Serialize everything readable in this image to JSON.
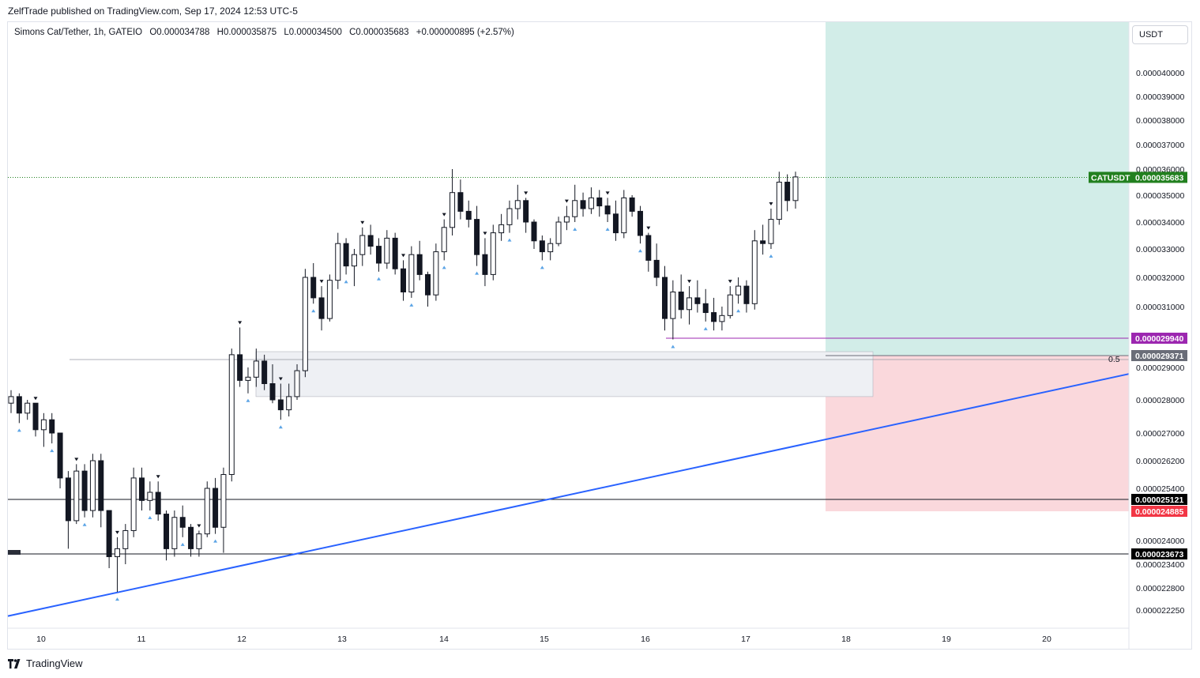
{
  "publisher": "ZelfTrade published on TradingView.com, Sep 17, 2024 12:53 UTC-5",
  "legend": {
    "symbol": "Simons Cat/Tether, 1h, GATEIO",
    "open": "O0.000034788",
    "high": "H0.000035875",
    "low": "L0.000034500",
    "close": "C0.000035683",
    "change": "+0.000000895 (+2.57%)"
  },
  "currency": "USDT",
  "footer_brand": "TradingView",
  "fib_label": "0.5",
  "colors": {
    "up": "#ffffff",
    "down": "#131722",
    "trendline": "#2962ff",
    "target_zone": "#d2ede8",
    "stop_zone": "#fad8dc",
    "current_tag": "#22801f",
    "purple_tag": "#9c27b0",
    "grey_tag": "#6a6d78",
    "black_tag": "#000000",
    "red_tag": "#f23645",
    "arrow_marker": "#5ba4e6"
  },
  "chart_data": {
    "type": "candlestick",
    "symbol_tag": "CATUSDT",
    "price_axis_labels": [
      "0.000040000",
      "0.000039000",
      "0.000038000",
      "0.000037000",
      "0.000036000",
      "0.000035000",
      "0.000034000",
      "0.000033000",
      "0.000032000",
      "0.000031000",
      "0.000029000",
      "0.000028000",
      "0.000027000",
      "0.000026200",
      "0.000025400",
      "0.000024000",
      "0.000023400",
      "0.000022800",
      "0.000022250"
    ],
    "time_axis_labels": [
      "10",
      "11",
      "12",
      "13",
      "14",
      "15",
      "16",
      "17",
      "18",
      "19",
      "20"
    ],
    "current_price": 3.5683e-05,
    "levels": [
      {
        "label": "0.000029940",
        "value": 2.994e-05,
        "tag": "purple"
      },
      {
        "label": "0.000029371",
        "value": 2.9371e-05,
        "tag": "grey"
      },
      {
        "label": "0.000025121",
        "value": 2.5121e-05,
        "tag": "black"
      },
      {
        "label": "0.000024885",
        "value": 2.4885e-05,
        "tag": "red"
      },
      {
        "label": "0.000023673",
        "value": 2.3673e-05,
        "tag": "black"
      }
    ],
    "demand_zone": [
      2.81e-05,
      2.95e-05
    ],
    "position": {
      "entry": 2.9371e-05,
      "target_top": 4.1e-05,
      "stop": 2.4885e-05
    },
    "trendline": {
      "from_price": 2.21e-05,
      "to_price": 2.88e-05
    },
    "candles": [
      [
        27.9,
        28.3,
        27.6,
        28.1
      ],
      [
        28.1,
        28.2,
        27.3,
        27.6
      ],
      [
        27.6,
        28.0,
        27.4,
        27.9
      ],
      [
        27.9,
        27.9,
        26.9,
        27.1
      ],
      [
        27.1,
        27.6,
        26.6,
        27.4
      ],
      [
        27.4,
        27.6,
        26.7,
        27.0
      ],
      [
        27.0,
        27.0,
        25.4,
        25.7
      ],
      [
        25.7,
        25.9,
        23.8,
        24.6
      ],
      [
        24.6,
        26.1,
        24.5,
        25.9
      ],
      [
        25.9,
        26.1,
        24.7,
        24.9
      ],
      [
        24.9,
        26.4,
        24.7,
        26.2
      ],
      [
        26.2,
        26.4,
        24.4,
        24.9
      ],
      [
        24.9,
        24.9,
        23.3,
        23.6
      ],
      [
        23.6,
        24.1,
        22.7,
        23.8
      ],
      [
        23.8,
        24.5,
        23.4,
        24.3
      ],
      [
        24.3,
        26.0,
        24.1,
        25.7
      ],
      [
        25.7,
        26.0,
        24.9,
        25.1
      ],
      [
        25.1,
        25.6,
        24.9,
        25.3
      ],
      [
        25.3,
        25.6,
        24.6,
        24.8
      ],
      [
        24.8,
        24.9,
        23.5,
        23.8
      ],
      [
        23.8,
        24.9,
        23.6,
        24.7
      ],
      [
        24.7,
        25.0,
        24.1,
        24.4
      ],
      [
        24.4,
        24.5,
        23.6,
        23.8
      ],
      [
        23.8,
        24.3,
        23.6,
        24.2
      ],
      [
        24.2,
        25.6,
        24.1,
        25.4
      ],
      [
        25.4,
        25.7,
        24.2,
        24.4
      ],
      [
        24.4,
        26.0,
        23.7,
        25.8
      ],
      [
        25.8,
        29.6,
        25.6,
        29.4
      ],
      [
        29.4,
        30.3,
        28.4,
        28.6
      ],
      [
        28.6,
        29.0,
        28.2,
        28.7
      ],
      [
        28.7,
        29.6,
        28.4,
        29.2
      ],
      [
        29.2,
        29.4,
        28.3,
        28.5
      ],
      [
        28.5,
        29.1,
        27.9,
        28.0
      ],
      [
        28.0,
        28.5,
        27.4,
        27.7
      ],
      [
        27.7,
        28.5,
        27.5,
        28.1
      ],
      [
        28.1,
        29.1,
        28.0,
        28.9
      ],
      [
        28.9,
        32.3,
        28.7,
        32.0
      ],
      [
        32.0,
        32.5,
        31.1,
        31.3
      ],
      [
        31.3,
        31.7,
        30.2,
        30.6
      ],
      [
        30.6,
        32.1,
        30.5,
        31.9
      ],
      [
        31.9,
        33.6,
        31.6,
        33.2
      ],
      [
        33.2,
        33.4,
        32.1,
        32.4
      ],
      [
        32.4,
        33.0,
        31.7,
        32.8
      ],
      [
        32.8,
        33.8,
        32.4,
        33.5
      ],
      [
        33.5,
        33.9,
        32.8,
        33.1
      ],
      [
        33.1,
        33.4,
        32.2,
        32.5
      ],
      [
        32.5,
        33.7,
        32.3,
        33.4
      ],
      [
        33.4,
        33.6,
        32.1,
        32.3
      ],
      [
        32.3,
        32.6,
        31.2,
        31.5
      ],
      [
        31.5,
        33.1,
        31.3,
        32.8
      ],
      [
        32.8,
        33.3,
        31.9,
        32.1
      ],
      [
        32.1,
        32.2,
        31.0,
        31.4
      ],
      [
        31.4,
        33.2,
        31.2,
        32.9
      ],
      [
        32.9,
        34.1,
        32.6,
        33.8
      ],
      [
        33.8,
        36.0,
        33.5,
        35.1
      ],
      [
        35.1,
        35.6,
        34.1,
        34.4
      ],
      [
        34.4,
        34.8,
        33.8,
        34.1
      ],
      [
        34.1,
        34.6,
        32.4,
        32.8
      ],
      [
        32.8,
        33.4,
        31.7,
        32.1
      ],
      [
        32.1,
        33.9,
        31.9,
        33.6
      ],
      [
        33.6,
        34.3,
        33.3,
        33.9
      ],
      [
        33.9,
        34.8,
        33.6,
        34.5
      ],
      [
        34.5,
        35.4,
        34.1,
        34.8
      ],
      [
        34.8,
        34.9,
        33.6,
        34.0
      ],
      [
        34.0,
        34.1,
        33.0,
        33.3
      ],
      [
        33.3,
        33.5,
        32.6,
        32.9
      ],
      [
        32.9,
        33.4,
        32.6,
        33.2
      ],
      [
        33.2,
        34.2,
        33.1,
        34.0
      ],
      [
        34.0,
        34.6,
        33.7,
        34.2
      ],
      [
        34.2,
        35.4,
        34.0,
        34.8
      ],
      [
        34.8,
        35.1,
        34.2,
        34.5
      ],
      [
        34.5,
        35.3,
        34.3,
        34.9
      ],
      [
        34.9,
        35.2,
        34.2,
        34.6
      ],
      [
        34.6,
        34.9,
        34.0,
        34.3
      ],
      [
        34.3,
        34.8,
        33.3,
        33.6
      ],
      [
        33.6,
        35.2,
        33.4,
        34.9
      ],
      [
        34.9,
        35.0,
        34.2,
        34.4
      ],
      [
        34.4,
        34.6,
        33.2,
        33.5
      ],
      [
        33.5,
        33.6,
        32.2,
        32.6
      ],
      [
        32.6,
        33.2,
        31.7,
        32.0
      ],
      [
        32.0,
        32.4,
        30.2,
        30.6
      ],
      [
        30.6,
        31.9,
        29.9,
        31.5
      ],
      [
        31.5,
        32.1,
        30.6,
        30.9
      ],
      [
        30.9,
        31.7,
        30.4,
        31.3
      ],
      [
        31.3,
        31.9,
        30.8,
        31.1
      ],
      [
        31.1,
        31.6,
        30.5,
        30.8
      ],
      [
        30.8,
        31.3,
        30.2,
        30.5
      ],
      [
        30.5,
        31.0,
        30.2,
        30.7
      ],
      [
        30.7,
        31.7,
        30.6,
        31.4
      ],
      [
        31.4,
        32.0,
        31.1,
        31.7
      ],
      [
        31.7,
        31.9,
        30.8,
        31.1
      ],
      [
        31.1,
        33.7,
        30.9,
        33.3
      ],
      [
        33.3,
        33.9,
        32.8,
        33.2
      ],
      [
        33.2,
        34.5,
        33.0,
        34.1
      ],
      [
        34.1,
        35.9,
        33.9,
        35.5
      ],
      [
        35.5,
        35.8,
        34.4,
        34.8
      ],
      [
        34.8,
        35.9,
        34.5,
        35.7
      ]
    ]
  }
}
